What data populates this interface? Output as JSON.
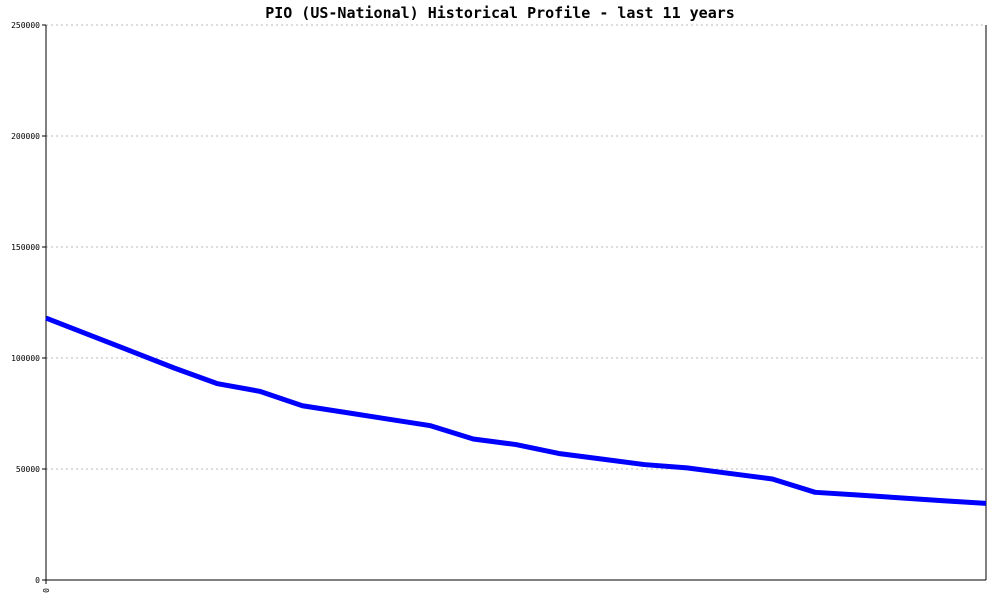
{
  "chart_data": {
    "type": "line",
    "title": "PIO (US-National) Historical Profile - last 11 years",
    "x": [
      0,
      1,
      2,
      3,
      4,
      5,
      6,
      7,
      8,
      9,
      10,
      11,
      12,
      13,
      14,
      15,
      16,
      17,
      18,
      19,
      20,
      21,
      22
    ],
    "series": [
      {
        "name": "PIO",
        "color": "#0000ff",
        "values": [
          118000,
          110500,
          103000,
          95500,
          88500,
          85000,
          78500,
          75500,
          72500,
          69500,
          63500,
          61000,
          57000,
          54500,
          52000,
          50500,
          48000,
          45500,
          39500,
          38300,
          37000,
          35700,
          34500
        ]
      }
    ],
    "xlim": [
      0,
      22
    ],
    "xticks": [
      0
    ],
    "ylim": [
      0,
      250000
    ],
    "yticks": [
      0,
      50000,
      100000,
      150000,
      200000,
      250000
    ],
    "grid": true
  }
}
